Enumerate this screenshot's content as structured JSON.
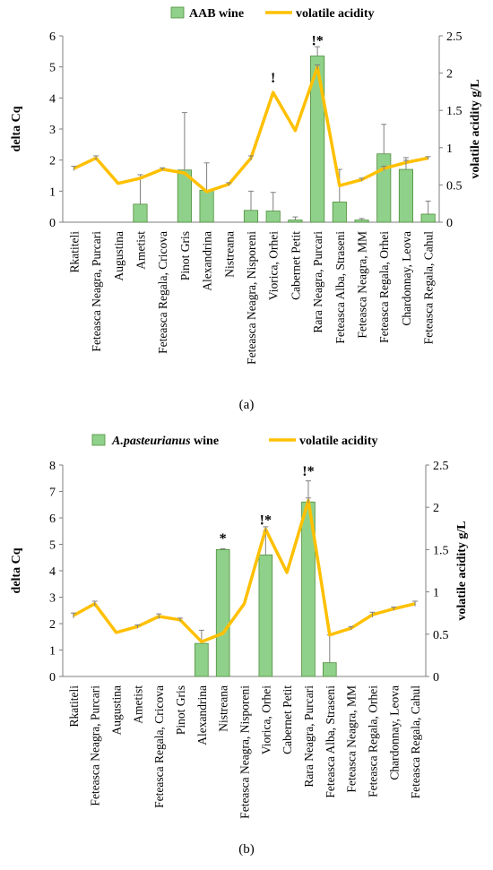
{
  "chart_data": [
    {
      "type": "bar",
      "panel_label": "(a)",
      "categories": [
        "Rkatiteli",
        "Feteasca Neagra, Purcari",
        "Augustina",
        "Ametist",
        "Feteasca Regala, Cricova",
        "Pinot Gris",
        "Alexandrina",
        "Nistreana",
        "Feteasca Neagra, Nisporeni",
        "Viorica, Orhei",
        "Cabernet Petit",
        "Rara Neagra, Purcari",
        "Feteasca Alba, Straseni",
        "Feteasca Neagra, MM",
        "Feteasca Regala, Orhei",
        "Chardonnay, Leova",
        "Feteasca Regala, Cahul"
      ],
      "ylabel": "delta Cq",
      "y2label": "volatile acidity g/L",
      "ylim": [
        0,
        6
      ],
      "y2lim": [
        0,
        2.5
      ],
      "yticks": [
        "0",
        "1",
        "2",
        "3",
        "4",
        "5",
        "6"
      ],
      "y2ticks": [
        "0",
        "0.5",
        "1",
        "1.5",
        "2",
        "2.5"
      ],
      "legend": {
        "position": "top",
        "bar_label": "AAB wine",
        "line_label": "volatile acidity"
      },
      "series": [
        {
          "kind": "bar",
          "values": [
            0,
            0,
            0,
            0.58,
            0,
            1.68,
            1.03,
            0,
            0.38,
            0.36,
            0.07,
            5.35,
            0.65,
            0.07,
            2.2,
            1.7,
            0.26
          ],
          "errors": [
            0,
            0,
            0,
            0.95,
            0,
            1.85,
            0.88,
            0,
            0.62,
            0.6,
            0.1,
            0.3,
            1.05,
            0.05,
            0.95,
            0.38,
            0.42
          ],
          "color": "#8fd18a"
        },
        {
          "kind": "line",
          "axis": "right",
          "values": [
            0.72,
            0.86,
            0.52,
            0.59,
            0.71,
            0.66,
            0.41,
            0.51,
            0.86,
            1.74,
            1.23,
            2.08,
            0.49,
            0.57,
            0.72,
            0.8,
            0.86
          ],
          "errors": [
            0.03,
            0.03,
            0,
            0,
            0.02,
            0,
            0,
            0.02,
            0.03,
            0,
            0,
            0.03,
            0,
            0.02,
            0.03,
            0.03,
            0.02
          ],
          "color": "#ffc000"
        }
      ],
      "annotations": [
        {
          "category_index": 9,
          "text": "!",
          "y": 4.5
        },
        {
          "category_index": 11,
          "text": "!*",
          "y": 5.7
        }
      ]
    },
    {
      "type": "bar",
      "panel_label": "(b)",
      "categories": [
        "Rkatiteli",
        "Feteasca Neagra, Purcari",
        "Augustina",
        "Ametist",
        "Feteasca Regala, Cricova",
        "Pinot Gris",
        "Alexandrina",
        "Nistreana",
        "Feteasca Neagra, Nisporeni",
        "Viorica, Orhei",
        "Cabernet Petit",
        "Rara Neagra, Purcari",
        "Feteasca Alba, Straseni",
        "Feteasca Neagra, MM",
        "Feteasca Regala, Orhei",
        "Chardonnay, Leova",
        "Feteasca Regala, Cahul"
      ],
      "ylabel": "delta Cq",
      "y2label": "volatile acidity g/L",
      "ylim": [
        0,
        8
      ],
      "y2lim": [
        0,
        2.5
      ],
      "yticks": [
        "0",
        "1",
        "2",
        "3",
        "4",
        "5",
        "6",
        "7",
        "8"
      ],
      "y2ticks": [
        "0",
        "0.5",
        "1",
        "1.5",
        "2",
        "2.5"
      ],
      "legend": {
        "position": "top",
        "bar_label": "A.pasteurianus",
        "bar_label_suffix": " wine",
        "line_label": "volatile acidity"
      },
      "series": [
        {
          "kind": "bar",
          "values": [
            0,
            0,
            0,
            0,
            0,
            0,
            1.25,
            4.8,
            0,
            4.6,
            0,
            6.6,
            0.52,
            0,
            0,
            0,
            0
          ],
          "errors": [
            0,
            0,
            0,
            0,
            0,
            0,
            0.5,
            0.03,
            0,
            0.9,
            0,
            0.8,
            1.05,
            0,
            0,
            0,
            0
          ],
          "color": "#8fd18a"
        },
        {
          "kind": "line",
          "axis": "right",
          "values": [
            0.72,
            0.86,
            0.52,
            0.59,
            0.71,
            0.67,
            0.41,
            0.51,
            0.86,
            1.74,
            1.23,
            2.08,
            0.49,
            0.57,
            0.73,
            0.8,
            0.86
          ],
          "errors": [
            0.03,
            0.03,
            0,
            0.02,
            0.03,
            0.02,
            0,
            0,
            0,
            0.03,
            0,
            0.03,
            0,
            0.02,
            0.03,
            0.02,
            0.03
          ],
          "color": "#ffc000"
        }
      ],
      "annotations": [
        {
          "category_index": 7,
          "text": "*",
          "y": 5.05
        },
        {
          "category_index": 9,
          "text": "!*",
          "y": 5.75
        },
        {
          "category_index": 11,
          "text": "!*",
          "y": 7.6
        }
      ]
    }
  ]
}
